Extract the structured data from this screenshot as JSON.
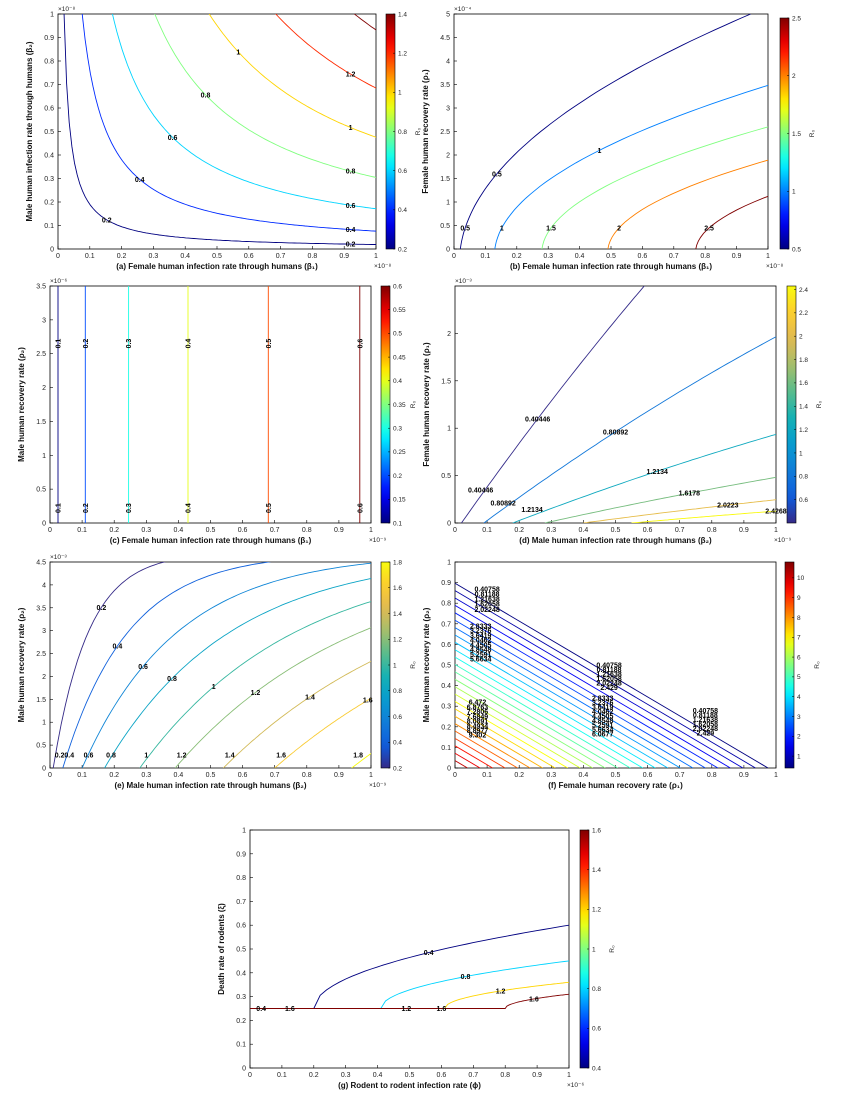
{
  "chart_data": [
    {
      "type": "contour",
      "panel": "a",
      "xlabel": "(a) Female human infection rate through humans (β₁)",
      "ylabel": "Male human infection rate through humans (β₂)",
      "xlim": [
        0,
        1
      ],
      "ylim": [
        0,
        1
      ],
      "x_multiplier": "×10⁻⁸",
      "y_multiplier": "×10⁻⁸",
      "xticks": [
        "0",
        "0.1",
        "0.2",
        "0.3",
        "0.4",
        "0.5",
        "0.6",
        "0.7",
        "0.8",
        "0.9",
        "1"
      ],
      "yticks": [
        "0",
        "0.1",
        "0.2",
        "0.3",
        "0.4",
        "0.5",
        "0.6",
        "0.7",
        "0.8",
        "0.9",
        "1"
      ],
      "colorbar": {
        "label": "R₀",
        "range": [
          0.2,
          1.4
        ],
        "ticks": [
          "0.2",
          "0.4",
          "0.6",
          "0.8",
          "1",
          "1.2",
          "1.4"
        ],
        "colormap": "jet"
      },
      "levels": [
        {
          "value": 0.2,
          "label": "0.2"
        },
        {
          "value": 0.4,
          "label": "0.4"
        },
        {
          "value": 0.6,
          "label": "0.6"
        },
        {
          "value": 0.8,
          "label": "0.8"
        },
        {
          "value": 1.0,
          "label": "1"
        },
        {
          "value": 1.2,
          "label": "1.2"
        },
        {
          "value": 1.4,
          "label": "1.4"
        }
      ]
    },
    {
      "type": "contour",
      "panel": "b",
      "xlabel": "(b) Female human infection rate through humans (β₁)",
      "ylabel": "Female human recovery rate (ρ₁)",
      "xlim": [
        0,
        1
      ],
      "ylim": [
        0,
        5
      ],
      "x_multiplier": "×10⁻⁸",
      "y_multiplier": "×10⁻⁴",
      "xticks": [
        "0",
        "0.1",
        "0.2",
        "0.3",
        "0.4",
        "0.5",
        "0.6",
        "0.7",
        "0.8",
        "0.9",
        "1"
      ],
      "yticks": [
        "0",
        "0.5",
        "1",
        "1.5",
        "2",
        "2.5",
        "3",
        "3.5",
        "4",
        "4.5",
        "5"
      ],
      "colorbar": {
        "label": "R₀",
        "range": [
          0.5,
          2.5
        ],
        "ticks": [
          "0.5",
          "1",
          "1.5",
          "2",
          "2.5"
        ],
        "colormap": "jet"
      },
      "levels": [
        {
          "value": 0.5,
          "label": "0.5"
        },
        {
          "value": 1.0,
          "label": "1"
        },
        {
          "value": 1.5,
          "label": "1.5"
        },
        {
          "value": 2.0,
          "label": "2"
        },
        {
          "value": 2.5,
          "label": "2.5"
        }
      ]
    },
    {
      "type": "contour",
      "panel": "c",
      "xlabel": "(c) Female human infection rate through humans (β₁)",
      "ylabel": "Male human recovery rate (ρ₂)",
      "xlim": [
        0,
        1
      ],
      "ylim": [
        0,
        3.5
      ],
      "x_multiplier": "×10⁻⁹",
      "y_multiplier": "×10⁻⁶",
      "xticks": [
        "0",
        "0.1",
        "0.2",
        "0.3",
        "0.4",
        "0.5",
        "0.6",
        "0.7",
        "0.8",
        "0.9",
        "1"
      ],
      "yticks": [
        "0",
        "0.5",
        "1",
        "1.5",
        "2",
        "2.5",
        "3",
        "3.5"
      ],
      "colorbar": {
        "label": "R₀",
        "range": [
          0.1,
          0.6
        ],
        "ticks": [
          "0.1",
          "0.15",
          "0.2",
          "0.25",
          "0.3",
          "0.35",
          "0.4",
          "0.45",
          "0.5",
          "0.55",
          "0.6"
        ],
        "colormap": "jet"
      },
      "levels": [
        {
          "value": 0.1,
          "label": "0.1",
          "x": 0.025
        },
        {
          "value": 0.2,
          "label": "0.2",
          "x": 0.11
        },
        {
          "value": 0.3,
          "label": "0.3",
          "x": 0.245
        },
        {
          "value": 0.4,
          "label": "0.4",
          "x": 0.43
        },
        {
          "value": 0.5,
          "label": "0.5",
          "x": 0.68
        },
        {
          "value": 0.6,
          "label": "0.6",
          "x": 0.965
        }
      ]
    },
    {
      "type": "contour",
      "panel": "d",
      "xlabel": "(d) Male human infection rate through humans (β₂)",
      "ylabel": "Female human recovery rate (ρ₁)",
      "xlim": [
        0,
        1
      ],
      "ylim": [
        0,
        2.5
      ],
      "x_multiplier": "×10⁻⁹",
      "y_multiplier": "×10⁻³",
      "xticks": [
        "0",
        "0.1",
        "0.2",
        "0.3",
        "0.4",
        "0.5",
        "0.6",
        "0.7",
        "0.8",
        "0.9",
        "1"
      ],
      "yticks": [
        "0",
        "0.5",
        "1",
        "1.5",
        "2"
      ],
      "colorbar": {
        "label": "R₀",
        "range": [
          0.4,
          2.43
        ],
        "ticks": [
          "0.6",
          "0.8",
          "1",
          "1.2",
          "1.4",
          "1.6",
          "1.8",
          "2",
          "2.2",
          "2.4"
        ],
        "colormap": "parula"
      },
      "levels": [
        {
          "value": 0.40446,
          "label": "0.40446"
        },
        {
          "value": 0.80892,
          "label": "0.80892"
        },
        {
          "value": 1.2134,
          "label": "1.2134"
        },
        {
          "value": 1.6178,
          "label": "1.6178"
        },
        {
          "value": 2.0223,
          "label": "2.0223"
        },
        {
          "value": 2.4268,
          "label": "2.4268"
        }
      ]
    },
    {
      "type": "contour",
      "panel": "e",
      "xlabel": "(e) Male human infection rate through humans (β₂)",
      "ylabel": "Male human recovery rate (ρ₂)",
      "xlim": [
        0,
        1
      ],
      "ylim": [
        0,
        4.5
      ],
      "x_multiplier": "×10⁻⁹",
      "y_multiplier": "×10⁻³",
      "xticks": [
        "0",
        "0.1",
        "0.2",
        "0.3",
        "0.4",
        "0.5",
        "0.6",
        "0.7",
        "0.8",
        "0.9",
        "1"
      ],
      "yticks": [
        "0",
        "0.5",
        "1",
        "1.5",
        "2",
        "2.5",
        "3",
        "3.5",
        "4",
        "4.5"
      ],
      "colorbar": {
        "label": "R₀",
        "range": [
          0.2,
          1.8
        ],
        "ticks": [
          "0.2",
          "0.4",
          "0.6",
          "0.8",
          "1",
          "1.2",
          "1.4",
          "1.6",
          "1.8"
        ],
        "colormap": "parula"
      },
      "levels": [
        {
          "value": 0.2,
          "label": "0.2"
        },
        {
          "value": 0.4,
          "label": "0.4"
        },
        {
          "value": 0.6,
          "label": "0.6"
        },
        {
          "value": 0.8,
          "label": "0.8"
        },
        {
          "value": 1.0,
          "label": "1"
        },
        {
          "value": 1.2,
          "label": "1.2"
        },
        {
          "value": 1.4,
          "label": "1.4"
        },
        {
          "value": 1.6,
          "label": "1.6"
        },
        {
          "value": 1.8,
          "label": "1.8"
        }
      ]
    },
    {
      "type": "contour",
      "panel": "f",
      "xlabel": "(f) Female human recovery rate (ρ₁)",
      "ylabel": "Male human recovery rate (ρ₂)",
      "xlim": [
        0,
        1
      ],
      "ylim": [
        0,
        1
      ],
      "xticks": [
        "0",
        "0.1",
        "0.2",
        "0.3",
        "0.4",
        "0.5",
        "0.6",
        "0.7",
        "0.8",
        "0.9",
        "1"
      ],
      "yticks": [
        "0",
        "0.1",
        "0.2",
        "0.3",
        "0.4",
        "0.5",
        "0.6",
        "0.7",
        "0.8",
        "0.9",
        "1"
      ],
      "colorbar": {
        "label": "R₀",
        "range": [
          0.4,
          10.8
        ],
        "ticks": [
          "1",
          "2",
          "3",
          "4",
          "5",
          "6",
          "7",
          "8",
          "9",
          "10"
        ],
        "colormap": "jet"
      },
      "level_labels_group_1": [
        "0.40758",
        "0.81188",
        "1.21638",
        "1.62058",
        "2.02248"
      ],
      "level_labels_group_2": [
        "2.8333",
        "3.2376",
        "3.6419",
        "4.0462",
        "4.4505",
        "4.8548",
        "5.2591",
        "5.6634"
      ],
      "level_labels_group_3": [
        "6.472",
        "6.8763",
        "7.2806",
        "7.6849",
        "8.0891",
        "8.4934",
        "8.8977",
        "9.302"
      ],
      "level_labels_mid_a": [
        "0.40758",
        "0.81188",
        "1.21638",
        "1.62058",
        "2.02248",
        "2.429"
      ],
      "level_labels_mid_b": [
        "2.8333",
        "3.2376",
        "3.6419",
        "4.0462",
        "4.4505",
        "4.8548",
        "5.2591",
        "5.6634",
        "6.0677"
      ],
      "level_labels_right": [
        "0.40758",
        "0.81188",
        "1.21638",
        "1.62058",
        "2.02248",
        "2.429"
      ]
    },
    {
      "type": "contour",
      "panel": "g",
      "xlabel": "(g) Rodent to rodent infection rate (ϕ)",
      "ylabel": "Death rate of rodents (ξ)",
      "xlim": [
        0,
        1
      ],
      "ylim": [
        0,
        1
      ],
      "x_multiplier": "×10⁻⁶",
      "xticks": [
        "0",
        "0.1",
        "0.2",
        "0.3",
        "0.4",
        "0.5",
        "0.6",
        "0.7",
        "0.8",
        "0.9",
        "1"
      ],
      "yticks": [
        "0",
        "0.1",
        "0.2",
        "0.3",
        "0.4",
        "0.5",
        "0.6",
        "0.7",
        "0.8",
        "0.9",
        "1"
      ],
      "colorbar": {
        "label": "R₀",
        "range": [
          0.4,
          1.6
        ],
        "ticks": [
          "0.4",
          "0.6",
          "0.8",
          "1",
          "1.2",
          "1.4",
          "1.6"
        ],
        "colormap": "jet"
      },
      "levels": [
        {
          "value": 0.4,
          "label": "0.4"
        },
        {
          "value": 0.8,
          "label": "0.8"
        },
        {
          "value": 1.2,
          "label": "1.2"
        },
        {
          "value": 1.6,
          "label": "1.6"
        }
      ]
    }
  ]
}
